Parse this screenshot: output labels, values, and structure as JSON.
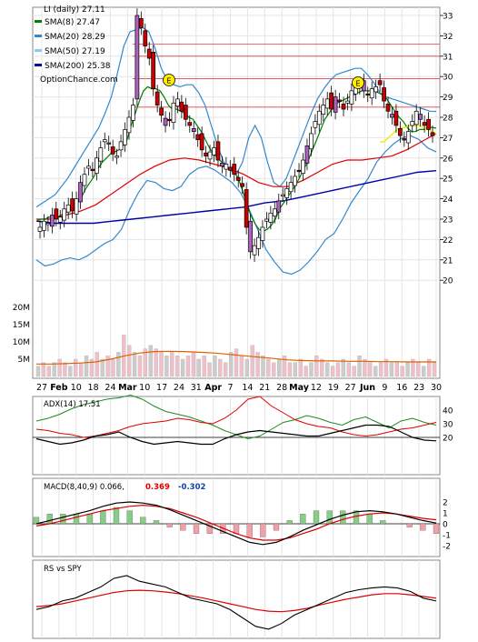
{
  "chart_data": {
    "type": "candlestick",
    "symbol_line": "LI (daily) 27.11",
    "legend": [
      {
        "label": "SMA(8) 27.47",
        "color": "#008000"
      },
      {
        "label": "SMA(20) 28.29",
        "color": "#3388cc"
      },
      {
        "label": "SMA(50) 27.19",
        "color": "#88ccee"
      },
      {
        "label": "SMA(200) 25.38",
        "color": "#0000aa"
      }
    ],
    "watermark": "OptionChance.com",
    "earnings_marker": "E",
    "price_ticks": [
      "33",
      "32",
      "31",
      "30",
      "29",
      "28",
      "27",
      "26",
      "25",
      "24",
      "23",
      "22",
      "21",
      "20"
    ],
    "volume_ticks": [
      "20M",
      "15M",
      "10M",
      "5M"
    ],
    "x_labels": [
      "27",
      "Feb",
      "10",
      "18",
      "24",
      "Mar",
      "10",
      "17",
      "24",
      "31",
      "Apr",
      "7",
      "14",
      "21",
      "28",
      "May",
      "12",
      "19",
      "27",
      "Jun",
      "9",
      "16",
      "23",
      "30"
    ],
    "price_series": {
      "close": [
        22.6,
        22.9,
        22.8,
        23.2,
        23.0,
        23.1,
        23.5,
        23.7,
        23.4,
        24.0,
        24.8,
        25.2,
        25.6,
        25.4,
        26.0,
        26.5,
        26.9,
        26.7,
        26.2,
        26.1,
        26.8,
        27.4,
        28.0,
        28.6,
        33.0,
        32.4,
        31.5,
        30.9,
        29.4,
        28.6,
        28.1,
        27.6,
        27.9,
        28.7,
        28.9,
        28.3,
        27.9,
        27.6,
        27.3,
        26.9,
        26.4,
        26.1,
        26.3,
        26.5,
        25.9,
        25.6,
        25.7,
        25.4,
        25.2,
        24.9,
        24.6,
        22.6,
        21.4,
        21.7,
        22.1,
        22.6,
        23.0,
        23.3,
        23.5,
        23.9,
        24.2,
        24.5,
        24.8,
        25.1,
        25.4,
        25.9,
        26.6,
        27.2,
        27.8,
        28.3,
        28.6,
        28.9,
        28.4,
        29.0,
        28.8,
        28.4,
        28.8,
        29.3,
        29.6,
        29.5,
        29.3,
        29.1,
        29.4,
        29.5,
        29.6,
        28.8,
        28.3,
        28.0,
        27.6,
        27.1,
        26.9,
        27.3,
        27.8,
        28.3,
        27.9,
        27.6,
        27.4,
        27.1
      ],
      "sma8": [
        22.9,
        23.0,
        23.0,
        23.1,
        23.1,
        23.1,
        23.2,
        23.3,
        23.4,
        23.6,
        23.8,
        24.1,
        24.5,
        24.8,
        25.1,
        25.5,
        25.8,
        26.0,
        26.2,
        26.3,
        26.4,
        26.6,
        26.9,
        27.6,
        28.2,
        28.8,
        29.3,
        29.5,
        29.4,
        29.4,
        29.3,
        29.0,
        28.6,
        28.4,
        28.4,
        28.3,
        28.2,
        28.0,
        27.9,
        27.6,
        27.3,
        26.9,
        26.5,
        26.2,
        26.0,
        25.8,
        25.6,
        25.5,
        25.3,
        25.0,
        24.4,
        23.8,
        23.2,
        22.8,
        22.5,
        22.4,
        22.5,
        22.7,
        23.0,
        23.5,
        23.8,
        24.1,
        24.4,
        24.7,
        25.1,
        25.5,
        25.9,
        26.4,
        26.9,
        27.4,
        27.9,
        28.2,
        28.5,
        28.7,
        28.8,
        28.9,
        29.0,
        29.1,
        29.2,
        29.3,
        29.3,
        29.3,
        29.3,
        29.2,
        29.1,
        28.9,
        28.6,
        28.3,
        28.0,
        27.8,
        27.5,
        27.3,
        27.3,
        27.4,
        27.4,
        27.5,
        27.5,
        27.47
      ],
      "sma20": [
        23.0,
        23.0,
        23.0,
        23.1,
        23.1,
        23.1,
        23.2,
        23.2,
        23.3,
        23.4,
        23.5,
        23.7,
        23.9,
        24.1,
        24.4,
        24.6,
        24.9,
        25.1,
        25.3,
        25.5,
        25.7,
        26.0,
        26.3,
        26.7,
        27.2,
        27.6,
        27.9,
        28.1,
        28.2,
        28.3,
        28.4,
        28.4,
        28.4,
        28.3,
        28.2,
        28.1,
        28.0,
        27.8,
        27.6,
        27.4,
        27.1,
        26.8,
        26.6,
        26.3,
        26.0,
        25.8,
        25.5,
        25.3,
        25.0,
        24.7,
        24.4,
        24.0,
        23.6,
        23.4,
        23.3,
        23.3,
        23.3,
        23.4,
        23.6,
        23.8,
        24.0,
        24.3,
        24.6,
        25.0,
        25.4,
        25.8,
        26.2,
        26.6,
        27.0,
        27.4,
        27.7,
        28.0,
        28.2,
        28.4,
        28.6,
        28.7,
        28.8,
        28.9,
        29.0,
        29.0,
        29.0,
        28.9,
        28.8,
        28.7,
        28.6,
        28.5,
        28.4,
        28.3,
        28.3,
        28.3,
        28.3,
        28.3,
        28.29
      ],
      "bb_upper": [
        23.6,
        23.8,
        24.0,
        24.2,
        24.6,
        25.0,
        25.5,
        26.0,
        26.5,
        27.0,
        27.5,
        28.2,
        29.0,
        30.2,
        31.5,
        32.2,
        32.3,
        32.4,
        32.2,
        31.4,
        30.4,
        29.8,
        29.6,
        29.5,
        29.6,
        29.6,
        29.2,
        28.6,
        27.6,
        26.6,
        25.8,
        25.4,
        25.2,
        25.8,
        27.0,
        27.6,
        27.0,
        25.8,
        24.8,
        24.6,
        25.0,
        25.8,
        26.6,
        27.4,
        28.2,
        28.9,
        29.4,
        29.8,
        30.1,
        30.2,
        30.3,
        30.4,
        30.4,
        30.1,
        29.7,
        29.2,
        29.0,
        28.9,
        28.8,
        28.7,
        28.6,
        28.5,
        28.4,
        28.3,
        28.29
      ],
      "bb_lower": [
        21.0,
        20.7,
        20.8,
        21.0,
        21.1,
        21.0,
        21.2,
        21.5,
        21.8,
        22.0,
        22.5,
        23.5,
        24.3,
        24.9,
        24.8,
        24.5,
        24.4,
        24.6,
        25.2,
        25.5,
        25.6,
        25.4,
        25.1,
        24.8,
        24.3,
        23.5,
        22.5,
        21.5,
        20.9,
        20.4,
        20.3,
        20.5,
        20.9,
        21.4,
        22.0,
        22.3,
        23.0,
        23.8,
        24.4,
        25.0,
        25.8,
        26.3,
        26.7,
        27.0,
        27.1,
        26.9,
        26.5,
        26.3
      ],
      "sma50": [
        26.8,
        26.8,
        27.0,
        27.2,
        27.4,
        27.5,
        27.5,
        27.6,
        27.6,
        27.6,
        27.5,
        27.4,
        27.3,
        27.19
      ],
      "sma200": [
        22.9,
        22.8,
        22.8,
        22.8,
        22.9,
        23.0,
        23.1,
        23.2,
        23.3,
        23.4,
        23.5,
        23.6,
        23.8,
        23.9,
        24.1,
        24.3,
        24.5,
        24.7,
        24.9,
        25.1,
        25.3,
        25.38
      ],
      "sma_red": [
        23.0,
        23.0,
        23.2,
        23.4,
        23.7,
        24.2,
        24.7,
        25.2,
        25.6,
        25.9,
        26.0,
        25.9,
        25.7,
        25.5,
        25.2,
        24.8,
        24.6,
        24.6,
        24.9,
        25.3,
        25.7,
        25.9,
        25.9,
        26.0,
        26.1,
        26.4,
        26.8,
        27.2
      ],
      "hlines": [
        31.6,
        31.0,
        29.9,
        28.5
      ]
    },
    "volume_series": {
      "values": [
        3,
        4,
        3,
        4,
        5,
        4,
        3,
        5,
        4,
        6,
        5,
        7,
        5,
        6,
        5,
        7,
        12,
        9,
        7,
        6,
        8,
        9,
        8,
        7,
        6,
        7,
        6,
        5,
        6,
        7,
        5,
        6,
        4,
        6,
        5,
        4,
        7,
        8,
        6,
        5,
        9,
        7,
        6,
        5,
        4,
        5,
        6,
        4,
        4,
        5,
        3,
        4,
        6,
        5,
        4,
        3,
        4,
        5,
        4,
        3,
        6,
        5,
        4,
        3,
        4,
        5,
        4,
        4,
        3,
        4,
        5,
        4,
        3,
        5,
        4
      ],
      "avg": [
        3.6,
        3.6,
        3.7,
        3.9,
        4.2,
        5.0,
        6.0,
        6.8,
        7.2,
        7.3,
        7.2,
        7.0,
        6.8,
        6.4,
        6.0,
        5.6,
        5.2,
        4.8,
        4.6,
        4.5,
        4.5,
        4.4,
        4.4,
        4.3,
        4.3,
        4.2,
        4.2,
        4.2
      ]
    },
    "adx": {
      "label": "ADX(14) 17.51",
      "ticks": [
        "40",
        "30",
        "20"
      ],
      "adx": [
        19,
        17,
        15,
        16,
        18,
        21,
        22,
        24,
        20,
        17,
        15,
        16,
        17,
        16,
        15,
        15,
        19,
        22,
        24,
        25,
        24,
        23,
        22,
        21,
        21,
        23,
        25,
        27,
        29,
        29,
        28,
        24,
        20,
        18,
        17.5
      ],
      "plus_di": [
        32,
        34,
        37,
        41,
        44,
        46,
        48,
        49,
        51,
        48,
        43,
        39,
        37,
        35,
        32,
        29,
        25,
        22,
        19,
        21,
        26,
        31,
        33,
        36,
        34,
        31,
        29,
        33,
        35,
        31,
        27,
        32,
        34,
        31,
        29
      ],
      "minus_di": [
        26,
        25,
        23,
        22,
        20,
        21,
        23,
        25,
        28,
        30,
        31,
        32,
        34,
        33,
        31,
        30,
        34,
        40,
        48,
        50,
        43,
        38,
        33,
        30,
        28,
        27,
        24,
        22,
        21,
        22,
        24,
        26,
        27,
        29,
        31
      ]
    },
    "macd": {
      "label": "MACD(8,40,9) 0.066,",
      "value_red": "0.369",
      "value_blue": "-0.302",
      "ticks": [
        "2",
        "1",
        "0",
        "-1",
        "-2"
      ],
      "macd": [
        0.0,
        0.3,
        0.6,
        0.9,
        1.2,
        1.6,
        1.9,
        2.0,
        1.9,
        1.7,
        1.3,
        0.8,
        0.3,
        -0.2,
        -0.7,
        -1.2,
        -1.7,
        -1.9,
        -1.7,
        -1.2,
        -0.6,
        -0.1,
        0.4,
        0.8,
        1.1,
        1.2,
        1.1,
        0.9,
        0.6,
        0.3,
        0.066
      ],
      "signal": [
        -0.2,
        0.0,
        0.3,
        0.6,
        0.9,
        1.2,
        1.4,
        1.6,
        1.7,
        1.6,
        1.4,
        1.0,
        0.6,
        0.1,
        -0.4,
        -0.9,
        -1.3,
        -1.5,
        -1.5,
        -1.3,
        -0.9,
        -0.5,
        0.0,
        0.4,
        0.7,
        0.9,
        1.0,
        0.9,
        0.7,
        0.5,
        0.369
      ],
      "hist": [
        0.2,
        0.3,
        0.3,
        0.3,
        0.3,
        0.4,
        0.5,
        0.4,
        0.2,
        0.1,
        -0.1,
        -0.2,
        -0.3,
        -0.3,
        -0.3,
        -0.3,
        -0.4,
        -0.4,
        -0.2,
        0.1,
        0.3,
        0.4,
        0.4,
        0.4,
        0.4,
        0.3,
        0.1,
        0.0,
        -0.1,
        -0.2,
        -0.302
      ]
    },
    "rs": {
      "label": "RS vs SPY",
      "rs": [
        0.4,
        0.45,
        0.55,
        0.6,
        0.7,
        0.8,
        0.95,
        1.0,
        0.9,
        0.85,
        0.8,
        0.7,
        0.6,
        0.55,
        0.5,
        0.4,
        0.25,
        0.1,
        0.05,
        0.15,
        0.3,
        0.4,
        0.5,
        0.6,
        0.7,
        0.75,
        0.78,
        0.8,
        0.78,
        0.72,
        0.6,
        0.55
      ],
      "avg": [
        0.45,
        0.47,
        0.5,
        0.55,
        0.6,
        0.65,
        0.7,
        0.73,
        0.74,
        0.73,
        0.71,
        0.68,
        0.64,
        0.6,
        0.55,
        0.5,
        0.45,
        0.4,
        0.37,
        0.36,
        0.38,
        0.42,
        0.48,
        0.53,
        0.58,
        0.62,
        0.66,
        0.68,
        0.68,
        0.66,
        0.63,
        0.6
      ]
    }
  }
}
